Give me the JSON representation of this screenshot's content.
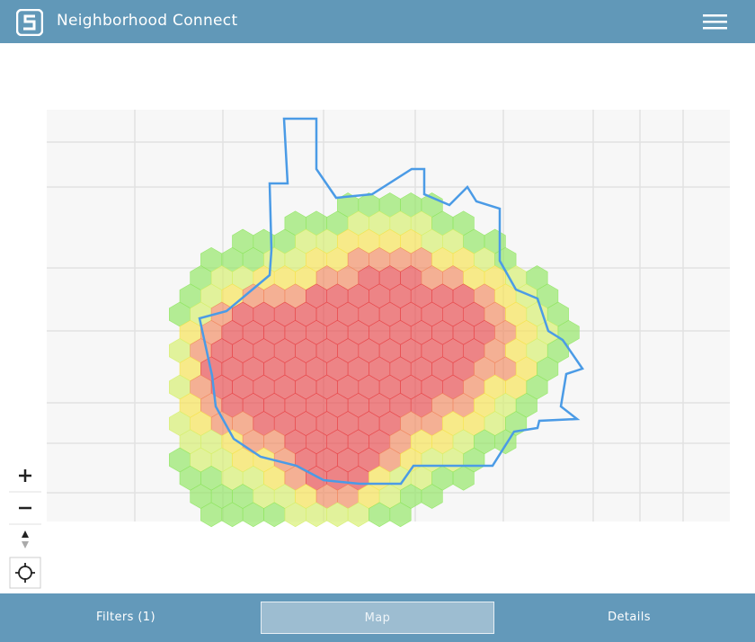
{
  "header": {
    "title": "Neighborhood Connect"
  },
  "tabs": [
    "Filters (1)",
    "Map",
    "Details"
  ]
}
